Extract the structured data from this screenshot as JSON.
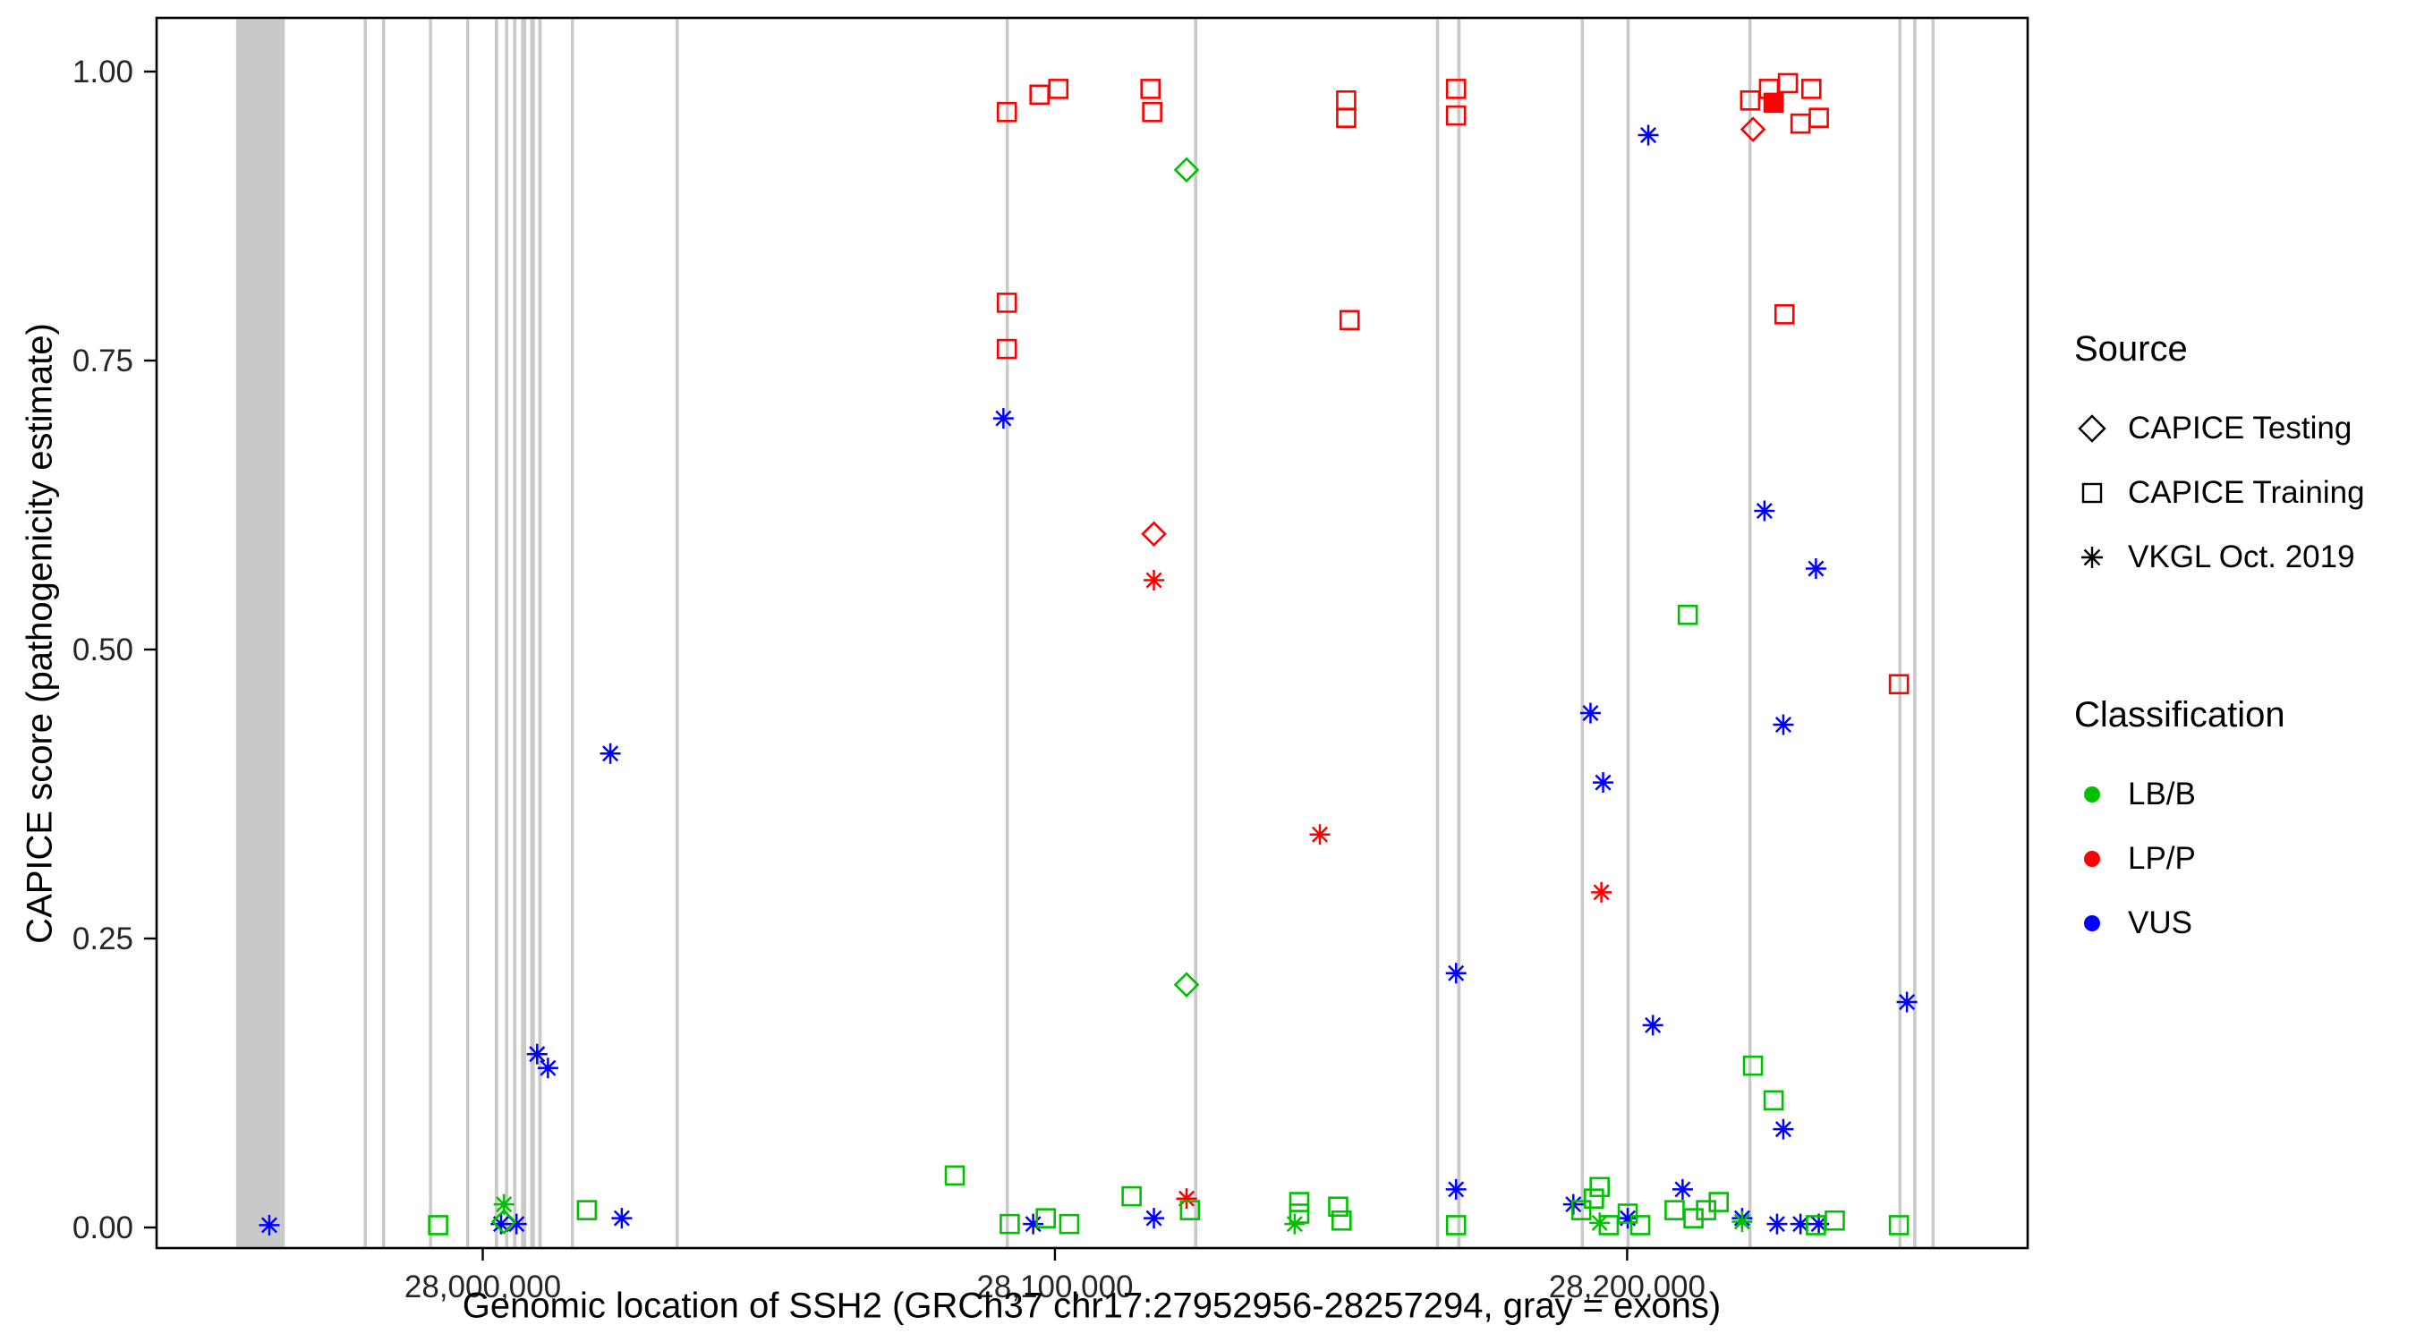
{
  "chart_data": {
    "type": "scatter",
    "title": "",
    "xlabel": "Genomic location of SSH2 (GRCh37 chr17:27952956-28257294, gray = exons)",
    "ylabel": "CAPICE score (pathogenicity estimate)",
    "xlim": [
      27943000,
      28270000
    ],
    "ylim": [
      0,
      1
    ],
    "grid": false,
    "legend_position": "right",
    "x_ticks": [
      {
        "value": 28000000,
        "label": "28,000,000"
      },
      {
        "value": 28100000,
        "label": "28,100,000"
      },
      {
        "value": 28200000,
        "label": "28,200,000"
      }
    ],
    "y_ticks": [
      {
        "value": 0.0,
        "label": "0.00"
      },
      {
        "value": 0.25,
        "label": "0.25"
      },
      {
        "value": 0.5,
        "label": "0.50"
      },
      {
        "value": 0.75,
        "label": "0.75"
      },
      {
        "value": 1.0,
        "label": "1.00"
      }
    ],
    "exon_color": "#c9c9c9",
    "exons": [
      [
        27956900,
        27965400
      ],
      [
        27979200,
        27979700
      ],
      [
        27982400,
        27982900
      ],
      [
        27990600,
        27991100
      ],
      [
        27997100,
        27997600
      ],
      [
        28002100,
        28002700
      ],
      [
        28003900,
        28004400
      ],
      [
        28005300,
        28005900
      ],
      [
        28006700,
        28007600
      ],
      [
        28008300,
        28009100
      ],
      [
        28009700,
        28010300
      ],
      [
        28015400,
        28015900
      ],
      [
        28033700,
        28034200
      ],
      [
        28091400,
        28091900
      ],
      [
        28124300,
        28124900
      ],
      [
        28166600,
        28167100
      ],
      [
        28170300,
        28170900
      ],
      [
        28191900,
        28192400
      ],
      [
        28199900,
        28200400
      ],
      [
        28221200,
        28221700
      ],
      [
        28247400,
        28247900
      ],
      [
        28250000,
        28250500
      ],
      [
        28253200,
        28253700
      ]
    ],
    "classification_colors": {
      "LB/B": "#00c000",
      "LP/P": "#ff0000",
      "VUS": "#0000ff"
    },
    "source_shapes": {
      "testing": "diamond",
      "training": "square",
      "vkgl": "asterisk"
    },
    "points": [
      {
        "x": 28091600,
        "y": 0.965,
        "src": "training",
        "cls": "LP/P"
      },
      {
        "x": 28097300,
        "y": 0.98,
        "src": "training",
        "cls": "LP/P"
      },
      {
        "x": 28100600,
        "y": 0.985,
        "src": "training",
        "cls": "LP/P"
      },
      {
        "x": 28116700,
        "y": 0.985,
        "src": "training",
        "cls": "LP/P"
      },
      {
        "x": 28117000,
        "y": 0.965,
        "src": "training",
        "cls": "LP/P"
      },
      {
        "x": 28091600,
        "y": 0.8,
        "src": "training",
        "cls": "LP/P"
      },
      {
        "x": 28091600,
        "y": 0.76,
        "src": "training",
        "cls": "LP/P"
      },
      {
        "x": 28150900,
        "y": 0.975,
        "src": "training",
        "cls": "LP/P"
      },
      {
        "x": 28150900,
        "y": 0.96,
        "src": "training",
        "cls": "LP/P"
      },
      {
        "x": 28151500,
        "y": 0.785,
        "src": "training",
        "cls": "LP/P"
      },
      {
        "x": 28170100,
        "y": 0.985,
        "src": "training",
        "cls": "LP/P"
      },
      {
        "x": 28170100,
        "y": 0.962,
        "src": "training",
        "cls": "LP/P"
      },
      {
        "x": 28221500,
        "y": 0.975,
        "src": "training",
        "cls": "LP/P"
      },
      {
        "x": 28224800,
        "y": 0.985,
        "src": "training",
        "cls": "LP/P"
      },
      {
        "x": 28225600,
        "y": 0.973,
        "src": "training",
        "cls": "LP/P",
        "filled": true
      },
      {
        "x": 28228100,
        "y": 0.99,
        "src": "training",
        "cls": "LP/P"
      },
      {
        "x": 28230300,
        "y": 0.955,
        "src": "training",
        "cls": "LP/P"
      },
      {
        "x": 28232200,
        "y": 0.985,
        "src": "training",
        "cls": "LP/P"
      },
      {
        "x": 28233500,
        "y": 0.96,
        "src": "training",
        "cls": "LP/P"
      },
      {
        "x": 28227500,
        "y": 0.79,
        "src": "training",
        "cls": "LP/P"
      },
      {
        "x": 28247500,
        "y": 0.47,
        "src": "training",
        "cls": "LP/P"
      },
      {
        "x": 28117300,
        "y": 0.6,
        "src": "testing",
        "cls": "LP/P"
      },
      {
        "x": 28222000,
        "y": 0.95,
        "src": "testing",
        "cls": "LP/P"
      },
      {
        "x": 28117300,
        "y": 0.56,
        "src": "vkgl",
        "cls": "LP/P"
      },
      {
        "x": 28146300,
        "y": 0.34,
        "src": "vkgl",
        "cls": "LP/P"
      },
      {
        "x": 28195500,
        "y": 0.29,
        "src": "vkgl",
        "cls": "LP/P"
      },
      {
        "x": 28123000,
        "y": 0.025,
        "src": "vkgl",
        "cls": "LP/P"
      },
      {
        "x": 28091000,
        "y": 0.7,
        "src": "vkgl",
        "cls": "VUS"
      },
      {
        "x": 28022300,
        "y": 0.41,
        "src": "vkgl",
        "cls": "VUS"
      },
      {
        "x": 28009500,
        "y": 0.15,
        "src": "vkgl",
        "cls": "VUS"
      },
      {
        "x": 28011400,
        "y": 0.138,
        "src": "vkgl",
        "cls": "VUS"
      },
      {
        "x": 28024300,
        "y": 0.008,
        "src": "vkgl",
        "cls": "VUS"
      },
      {
        "x": 27962700,
        "y": 0.002,
        "src": "vkgl",
        "cls": "VUS"
      },
      {
        "x": 28203700,
        "y": 0.945,
        "src": "vkgl",
        "cls": "VUS"
      },
      {
        "x": 28224000,
        "y": 0.62,
        "src": "vkgl",
        "cls": "VUS"
      },
      {
        "x": 28233000,
        "y": 0.57,
        "src": "vkgl",
        "cls": "VUS"
      },
      {
        "x": 28193600,
        "y": 0.445,
        "src": "vkgl",
        "cls": "VUS"
      },
      {
        "x": 28195800,
        "y": 0.385,
        "src": "vkgl",
        "cls": "VUS"
      },
      {
        "x": 28227300,
        "y": 0.435,
        "src": "vkgl",
        "cls": "VUS"
      },
      {
        "x": 28170100,
        "y": 0.22,
        "src": "vkgl",
        "cls": "VUS"
      },
      {
        "x": 28204500,
        "y": 0.175,
        "src": "vkgl",
        "cls": "VUS"
      },
      {
        "x": 28248900,
        "y": 0.195,
        "src": "vkgl",
        "cls": "VUS"
      },
      {
        "x": 28227300,
        "y": 0.085,
        "src": "vkgl",
        "cls": "VUS"
      },
      {
        "x": 28170100,
        "y": 0.033,
        "src": "vkgl",
        "cls": "VUS"
      },
      {
        "x": 28209700,
        "y": 0.033,
        "src": "vkgl",
        "cls": "VUS"
      },
      {
        "x": 28190600,
        "y": 0.02,
        "src": "vkgl",
        "cls": "VUS"
      },
      {
        "x": 28003200,
        "y": 0.003,
        "src": "vkgl",
        "cls": "VUS"
      },
      {
        "x": 28005900,
        "y": 0.003,
        "src": "vkgl",
        "cls": "VUS"
      },
      {
        "x": 28096200,
        "y": 0.003,
        "src": "vkgl",
        "cls": "VUS"
      },
      {
        "x": 28117300,
        "y": 0.008,
        "src": "vkgl",
        "cls": "VUS"
      },
      {
        "x": 28200100,
        "y": 0.008,
        "src": "vkgl",
        "cls": "VUS"
      },
      {
        "x": 28220100,
        "y": 0.008,
        "src": "vkgl",
        "cls": "VUS"
      },
      {
        "x": 28226200,
        "y": 0.003,
        "src": "vkgl",
        "cls": "VUS"
      },
      {
        "x": 28230300,
        "y": 0.003,
        "src": "vkgl",
        "cls": "VUS"
      },
      {
        "x": 28233500,
        "y": 0.003,
        "src": "vkgl",
        "cls": "VUS"
      },
      {
        "x": 28123000,
        "y": 0.915,
        "src": "testing",
        "cls": "LB/B"
      },
      {
        "x": 28123000,
        "y": 0.21,
        "src": "testing",
        "cls": "LB/B"
      },
      {
        "x": 28003700,
        "y": 0.005,
        "src": "testing",
        "cls": "LB/B"
      },
      {
        "x": 28003700,
        "y": 0.02,
        "src": "vkgl",
        "cls": "LB/B"
      },
      {
        "x": 28141900,
        "y": 0.003,
        "src": "vkgl",
        "cls": "LB/B"
      },
      {
        "x": 28220100,
        "y": 0.005,
        "src": "vkgl",
        "cls": "LB/B"
      },
      {
        "x": 28195200,
        "y": 0.004,
        "src": "vkgl",
        "cls": "LB/B"
      },
      {
        "x": 28082500,
        "y": 0.045,
        "src": "training",
        "cls": "LB/B"
      },
      {
        "x": 27992200,
        "y": 0.002,
        "src": "training",
        "cls": "LB/B"
      },
      {
        "x": 28018200,
        "y": 0.015,
        "src": "training",
        "cls": "LB/B"
      },
      {
        "x": 28092100,
        "y": 0.003,
        "src": "training",
        "cls": "LB/B"
      },
      {
        "x": 28098400,
        "y": 0.008,
        "src": "training",
        "cls": "LB/B"
      },
      {
        "x": 28102500,
        "y": 0.003,
        "src": "training",
        "cls": "LB/B"
      },
      {
        "x": 28113400,
        "y": 0.027,
        "src": "training",
        "cls": "LB/B"
      },
      {
        "x": 28123600,
        "y": 0.015,
        "src": "training",
        "cls": "LB/B"
      },
      {
        "x": 28142700,
        "y": 0.012,
        "src": "training",
        "cls": "LB/B"
      },
      {
        "x": 28142700,
        "y": 0.022,
        "src": "training",
        "cls": "LB/B"
      },
      {
        "x": 28149500,
        "y": 0.018,
        "src": "training",
        "cls": "LB/B"
      },
      {
        "x": 28150100,
        "y": 0.006,
        "src": "training",
        "cls": "LB/B"
      },
      {
        "x": 28170100,
        "y": 0.002,
        "src": "training",
        "cls": "LB/B"
      },
      {
        "x": 28210600,
        "y": 0.53,
        "src": "training",
        "cls": "LB/B"
      },
      {
        "x": 28222000,
        "y": 0.14,
        "src": "training",
        "cls": "LB/B"
      },
      {
        "x": 28225600,
        "y": 0.11,
        "src": "training",
        "cls": "LB/B"
      },
      {
        "x": 28192000,
        "y": 0.015,
        "src": "training",
        "cls": "LB/B"
      },
      {
        "x": 28194200,
        "y": 0.025,
        "src": "training",
        "cls": "LB/B"
      },
      {
        "x": 28195200,
        "y": 0.035,
        "src": "training",
        "cls": "LB/B"
      },
      {
        "x": 28196800,
        "y": 0.002,
        "src": "training",
        "cls": "LB/B"
      },
      {
        "x": 28200100,
        "y": 0.012,
        "src": "training",
        "cls": "LB/B"
      },
      {
        "x": 28202300,
        "y": 0.002,
        "src": "training",
        "cls": "LB/B"
      },
      {
        "x": 28208300,
        "y": 0.015,
        "src": "training",
        "cls": "LB/B"
      },
      {
        "x": 28211600,
        "y": 0.008,
        "src": "training",
        "cls": "LB/B"
      },
      {
        "x": 28213800,
        "y": 0.015,
        "src": "training",
        "cls": "LB/B"
      },
      {
        "x": 28216000,
        "y": 0.022,
        "src": "training",
        "cls": "LB/B"
      },
      {
        "x": 28233000,
        "y": 0.002,
        "src": "training",
        "cls": "LB/B"
      },
      {
        "x": 28236300,
        "y": 0.006,
        "src": "training",
        "cls": "LB/B"
      },
      {
        "x": 28247500,
        "y": 0.002,
        "src": "training",
        "cls": "LB/B"
      }
    ]
  },
  "legend": {
    "source": {
      "title": "Source",
      "items": [
        {
          "label": "CAPICE Testing",
          "shape": "diamond"
        },
        {
          "label": "CAPICE Training",
          "shape": "square"
        },
        {
          "label": "VKGL Oct. 2019",
          "shape": "asterisk"
        }
      ]
    },
    "classification": {
      "title": "Classification",
      "items": [
        {
          "label": "LB/B",
          "color": "#00c000"
        },
        {
          "label": "LP/P",
          "color": "#ff0000"
        },
        {
          "label": "VUS",
          "color": "#0000ff"
        }
      ]
    }
  }
}
